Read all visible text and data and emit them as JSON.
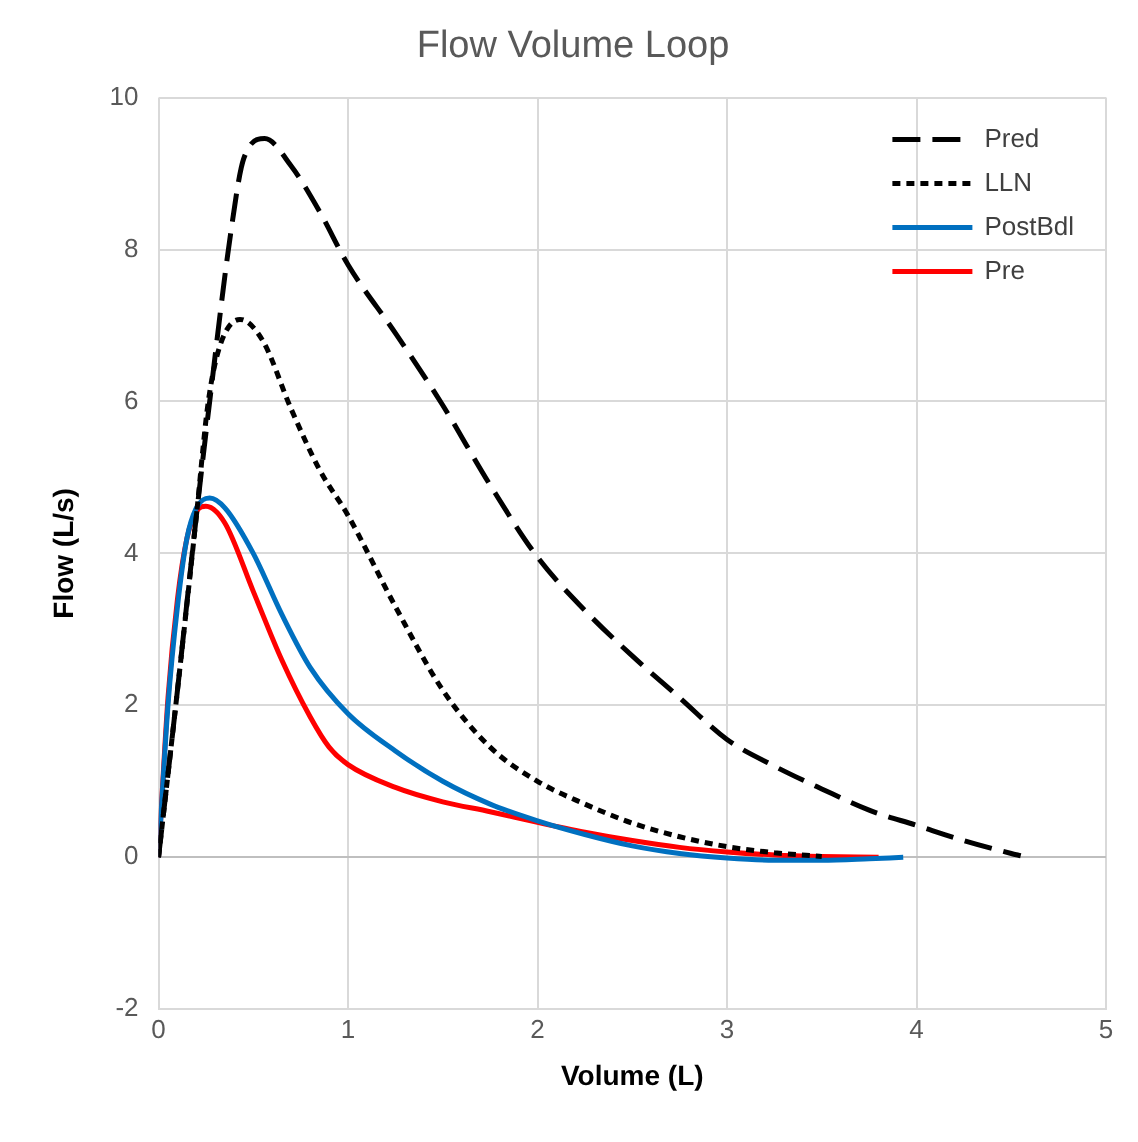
{
  "chart_data": {
    "type": "line",
    "title": "Flow Volume Loop",
    "xlabel": "Volume (L)",
    "ylabel": "Flow (L/s)",
    "xlim": [
      0,
      5
    ],
    "xticks": [
      0,
      1,
      2,
      3,
      4,
      5
    ],
    "ylim": [
      -2,
      10
    ],
    "yticks": [
      -2,
      0,
      2,
      4,
      6,
      8,
      10
    ],
    "grid": true,
    "legend": "top right",
    "marker": "none",
    "series": [
      {
        "name": "Pred",
        "color": "#000000",
        "line_style": "dashed",
        "x": [
          0,
          0.1,
          0.2,
          0.27,
          0.38,
          0.45,
          0.56,
          0.7,
          0.85,
          1,
          1.25,
          1.5,
          1.75,
          2,
          2.25,
          2.5,
          2.75,
          3,
          3.25,
          3.5,
          3.75,
          4,
          4.25,
          4.5,
          4.55
        ],
        "values": [
          0,
          2.2,
          4.5,
          6,
          8.2,
          9.2,
          9.46,
          9.1,
          8.5,
          7.8,
          6.9,
          5.95,
          4.9,
          3.95,
          3.25,
          2.65,
          2.1,
          1.55,
          1.2,
          0.9,
          0.62,
          0.42,
          0.22,
          0.05,
          0.02
        ]
      },
      {
        "name": "LLN",
        "color": "#000000",
        "line_style": "dotted",
        "x": [
          0,
          0.1,
          0.2,
          0.26,
          0.32,
          0.43,
          0.55,
          0.7,
          0.85,
          1,
          1.25,
          1.5,
          1.75,
          2,
          2.25,
          2.5,
          2.75,
          3,
          3.25,
          3.5
        ],
        "values": [
          0,
          2.2,
          4.5,
          5.95,
          6.7,
          7.08,
          6.8,
          5.9,
          5.1,
          4.5,
          3.3,
          2.2,
          1.45,
          1.0,
          0.7,
          0.45,
          0.27,
          0.14,
          0.06,
          0.01
        ]
      },
      {
        "name": "PostBdl",
        "color": "#0070c0",
        "line_style": "solid",
        "x": [
          0,
          0.05,
          0.1,
          0.15,
          0.2,
          0.27,
          0.35,
          0.5,
          0.65,
          0.8,
          1,
          1.25,
          1.5,
          1.75,
          2,
          2.25,
          2.5,
          2.75,
          3,
          3.25,
          3.5,
          3.75,
          3.93
        ],
        "values": [
          0,
          2.0,
          3.3,
          4.2,
          4.6,
          4.73,
          4.6,
          4.0,
          3.2,
          2.5,
          1.89,
          1.4,
          1.0,
          0.7,
          0.48,
          0.3,
          0.15,
          0.05,
          -0.01,
          -0.04,
          -0.04,
          -0.02,
          0
        ]
      },
      {
        "name": "Pre",
        "color": "#ff0000",
        "line_style": "solid",
        "x": [
          0,
          0.05,
          0.1,
          0.15,
          0.2,
          0.25,
          0.35,
          0.5,
          0.65,
          0.8,
          0.9,
          1,
          1.25,
          1.5,
          1.75,
          2,
          2.25,
          2.5,
          2.75,
          3,
          3.25,
          3.5,
          3.8
        ],
        "values": [
          0,
          2.1,
          3.4,
          4.2,
          4.55,
          4.62,
          4.4,
          3.5,
          2.6,
          1.85,
          1.45,
          1.22,
          0.92,
          0.73,
          0.6,
          0.46,
          0.33,
          0.22,
          0.13,
          0.07,
          0.03,
          0.01,
          0
        ]
      }
    ]
  }
}
